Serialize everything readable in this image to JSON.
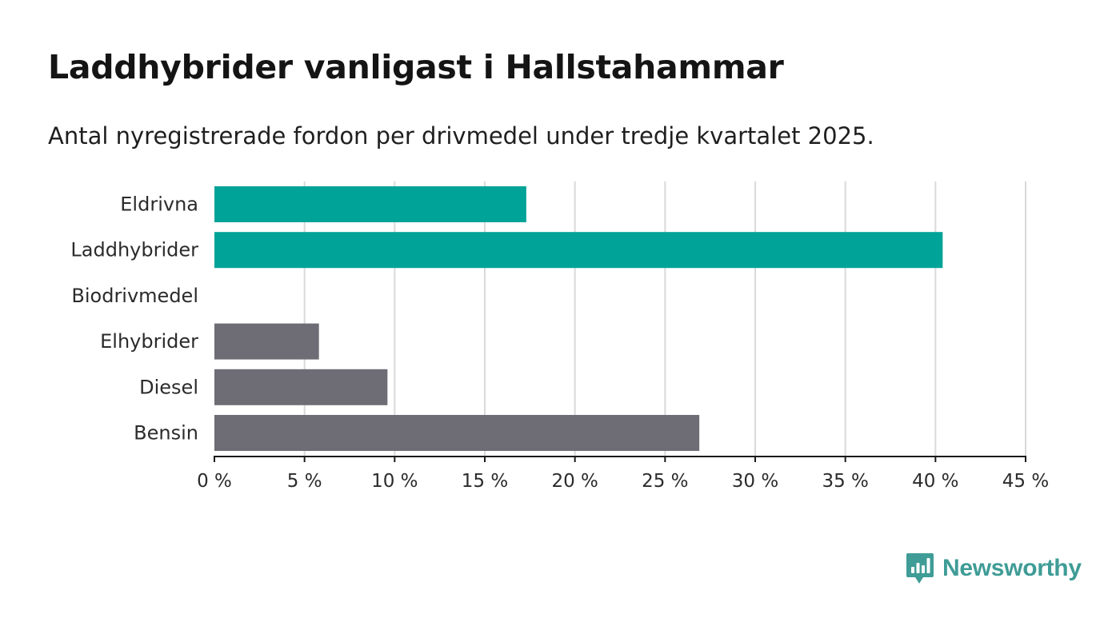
{
  "header": {
    "title": "Laddhybrider vanligast i Hallstahammar",
    "subtitle": "Antal nyregistrerade fordon per drivmedel under tredje kvartalet 2025."
  },
  "colors": {
    "highlight": "#00a398",
    "neutral": "#6e6d75",
    "grid": "#d9d9d9",
    "axis": "#1a1a1a",
    "logo": "#3f9c96"
  },
  "chart_data": {
    "type": "bar",
    "orientation": "horizontal",
    "title": "Laddhybrider vanligast i Hallstahammar",
    "subtitle": "Antal nyregistrerade fordon per drivmedel under tredje kvartalet 2025.",
    "xlabel": "",
    "ylabel": "",
    "unit": "%",
    "xlim": [
      0,
      45
    ],
    "ticks": [
      0,
      5,
      10,
      15,
      20,
      25,
      30,
      35,
      40,
      45
    ],
    "tick_labels": [
      "0 %",
      "5 %",
      "10 %",
      "15 %",
      "20 %",
      "25 %",
      "30 %",
      "35 %",
      "40 %",
      "45 %"
    ],
    "grid": true,
    "categories": [
      "Eldrivna",
      "Laddhybrider",
      "Biodrivmedel",
      "Elhybrider",
      "Diesel",
      "Bensin"
    ],
    "values": [
      17.3,
      40.4,
      0,
      5.8,
      9.6,
      26.9
    ],
    "highlight": [
      true,
      true,
      false,
      false,
      false,
      false
    ]
  },
  "brand": {
    "name": "Newsworthy",
    "icon": "newsworthy-chart-bubble-icon"
  }
}
